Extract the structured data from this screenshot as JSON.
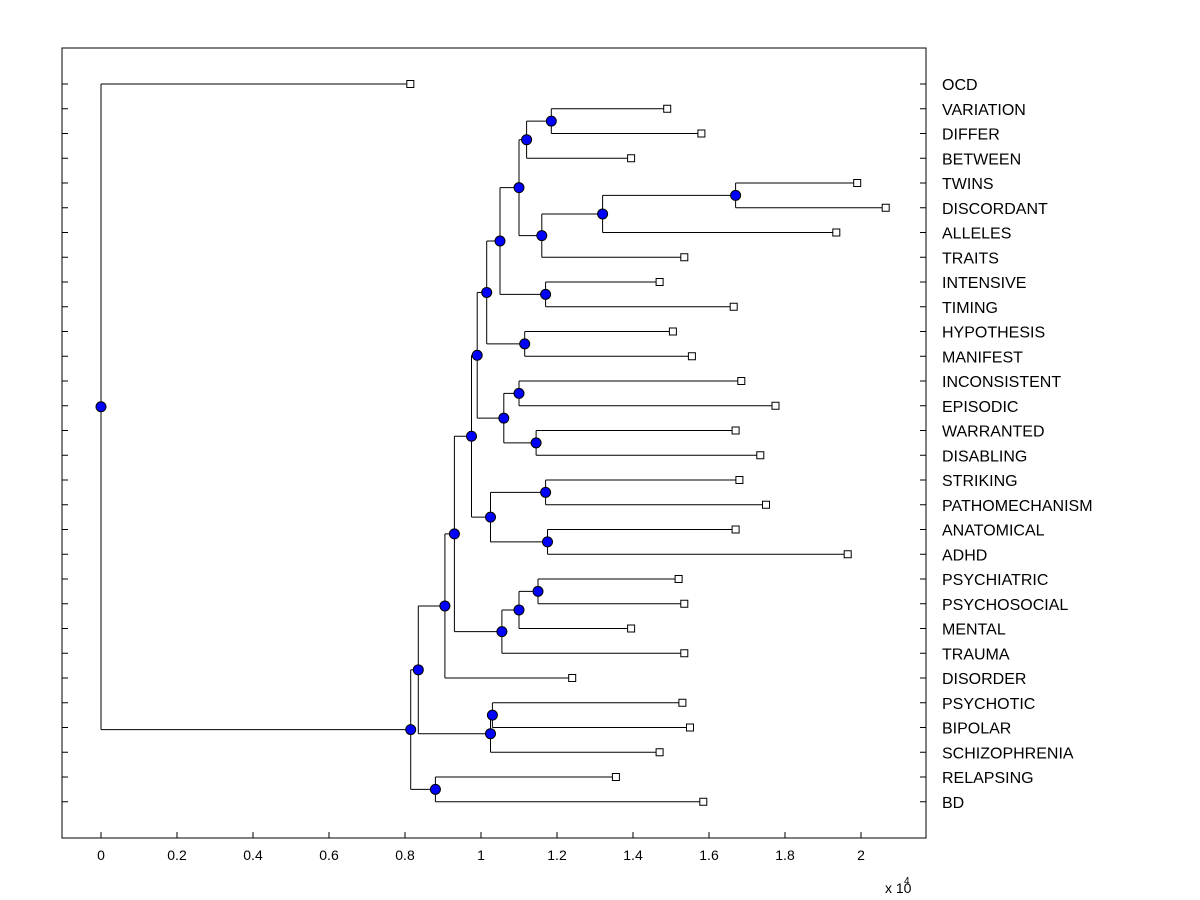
{
  "chart_data": {
    "type": "dendrogram",
    "orientation": "horizontal",
    "xlim": [
      -0.1,
      2.17
    ],
    "x_multiplier_label": "x 10",
    "x_multiplier_exp": "4",
    "xticks": [
      {
        "value": 0,
        "label": "0"
      },
      {
        "value": 0.2,
        "label": "0.2"
      },
      {
        "value": 0.4,
        "label": "0.4"
      },
      {
        "value": 0.6,
        "label": "0.6"
      },
      {
        "value": 0.8,
        "label": "0.8"
      },
      {
        "value": 1.0,
        "label": "1"
      },
      {
        "value": 1.2,
        "label": "1.2"
      },
      {
        "value": 1.4,
        "label": "1.4"
      },
      {
        "value": 1.6,
        "label": "1.6"
      },
      {
        "value": 1.8,
        "label": "1.8"
      },
      {
        "value": 2.0,
        "label": "2"
      }
    ],
    "leaves": [
      {
        "label": "OCD",
        "value": 0.814
      },
      {
        "label": "VARIATION",
        "value": 1.49
      },
      {
        "label": "DIFFER",
        "value": 1.58
      },
      {
        "label": "BETWEEN",
        "value": 1.395
      },
      {
        "label": "TWINS",
        "value": 1.99
      },
      {
        "label": "DISCORDANT",
        "value": 2.065
      },
      {
        "label": "ALLELES",
        "value": 1.935
      },
      {
        "label": "TRAITS",
        "value": 1.535
      },
      {
        "label": "INTENSIVE",
        "value": 1.47
      },
      {
        "label": "TIMING",
        "value": 1.665
      },
      {
        "label": "HYPOTHESIS",
        "value": 1.505
      },
      {
        "label": "MANIFEST",
        "value": 1.555
      },
      {
        "label": "INCONSISTENT",
        "value": 1.685
      },
      {
        "label": "EPISODIC",
        "value": 1.775
      },
      {
        "label": "WARRANTED",
        "value": 1.67
      },
      {
        "label": "DISABLING",
        "value": 1.735
      },
      {
        "label": "STRIKING",
        "value": 1.68
      },
      {
        "label": "PATHOMECHANISM",
        "value": 1.75
      },
      {
        "label": "ANATOMICAL",
        "value": 1.67
      },
      {
        "label": "ADHD",
        "value": 1.965
      },
      {
        "label": "PSYCHIATRIC",
        "value": 1.52
      },
      {
        "label": "PSYCHOSOCIAL",
        "value": 1.535
      },
      {
        "label": "MENTAL",
        "value": 1.395
      },
      {
        "label": "TRAUMA",
        "value": 1.535
      },
      {
        "label": "DISORDER",
        "value": 1.24
      },
      {
        "label": "PSYCHOTIC",
        "value": 1.53
      },
      {
        "label": "BIPOLAR",
        "value": 1.55
      },
      {
        "label": "SCHIZOPHRENIA",
        "value": 1.47
      },
      {
        "label": "RELAPSING",
        "value": 1.355
      },
      {
        "label": "BD",
        "value": 1.585
      }
    ],
    "merges": [
      {
        "id": "n1",
        "value": 1.185,
        "children": [
          "VARIATION",
          "DIFFER"
        ]
      },
      {
        "id": "n2",
        "value": 1.12,
        "children": [
          "n1",
          "BETWEEN"
        ]
      },
      {
        "id": "n3",
        "value": 1.67,
        "children": [
          "TWINS",
          "DISCORDANT"
        ]
      },
      {
        "id": "n4",
        "value": 1.32,
        "children": [
          "n3",
          "ALLELES"
        ]
      },
      {
        "id": "n5",
        "value": 1.16,
        "children": [
          "n4",
          "TRAITS"
        ]
      },
      {
        "id": "n6",
        "value": 1.1,
        "children": [
          "n2",
          "n5"
        ]
      },
      {
        "id": "n7",
        "value": 1.17,
        "children": [
          "INTENSIVE",
          "TIMING"
        ]
      },
      {
        "id": "n8",
        "value": 1.05,
        "children": [
          "n6",
          "n7"
        ]
      },
      {
        "id": "n9",
        "value": 1.115,
        "children": [
          "HYPOTHESIS",
          "MANIFEST"
        ]
      },
      {
        "id": "n10",
        "value": 1.015,
        "children": [
          "n8",
          "n9"
        ]
      },
      {
        "id": "n11",
        "value": 1.1,
        "children": [
          "INCONSISTENT",
          "EPISODIC"
        ]
      },
      {
        "id": "n12",
        "value": 1.145,
        "children": [
          "WARRANTED",
          "DISABLING"
        ]
      },
      {
        "id": "n13",
        "value": 1.06,
        "children": [
          "n11",
          "n12"
        ]
      },
      {
        "id": "n14",
        "value": 0.99,
        "children": [
          "n10",
          "n13"
        ]
      },
      {
        "id": "n15",
        "value": 1.17,
        "children": [
          "STRIKING",
          "PATHOMECHANISM"
        ]
      },
      {
        "id": "n16",
        "value": 1.175,
        "children": [
          "ANATOMICAL",
          "ADHD"
        ]
      },
      {
        "id": "n17",
        "value": 1.025,
        "children": [
          "n15",
          "n16"
        ]
      },
      {
        "id": "n18",
        "value": 0.975,
        "children": [
          "n14",
          "n17"
        ]
      },
      {
        "id": "n19",
        "value": 1.15,
        "children": [
          "PSYCHIATRIC",
          "PSYCHOSOCIAL"
        ]
      },
      {
        "id": "n20",
        "value": 1.1,
        "children": [
          "n19",
          "MENTAL"
        ]
      },
      {
        "id": "n21",
        "value": 1.055,
        "children": [
          "n20",
          "TRAUMA"
        ]
      },
      {
        "id": "n22",
        "value": 0.93,
        "children": [
          "n18",
          "n21"
        ]
      },
      {
        "id": "n23",
        "value": 0.905,
        "children": [
          "n22",
          "DISORDER"
        ]
      },
      {
        "id": "n24",
        "value": 1.03,
        "children": [
          "PSYCHOTIC",
          "BIPOLAR"
        ]
      },
      {
        "id": "n25",
        "value": 1.025,
        "children": [
          "n24",
          "SCHIZOPHRENIA"
        ]
      },
      {
        "id": "n26",
        "value": 0.835,
        "children": [
          "n23",
          "n25"
        ]
      },
      {
        "id": "n27",
        "value": 0.88,
        "children": [
          "RELAPSING",
          "BD"
        ]
      },
      {
        "id": "n28",
        "value": 0.815,
        "children": [
          "n26",
          "n27"
        ]
      },
      {
        "id": "n29",
        "value": 0.0,
        "children": [
          "OCD",
          "n28"
        ]
      }
    ],
    "colors": {
      "node_fill": "#0000ff",
      "node_stroke": "#000000",
      "leaf_fill": "#ffffff",
      "line": "#000000"
    }
  }
}
